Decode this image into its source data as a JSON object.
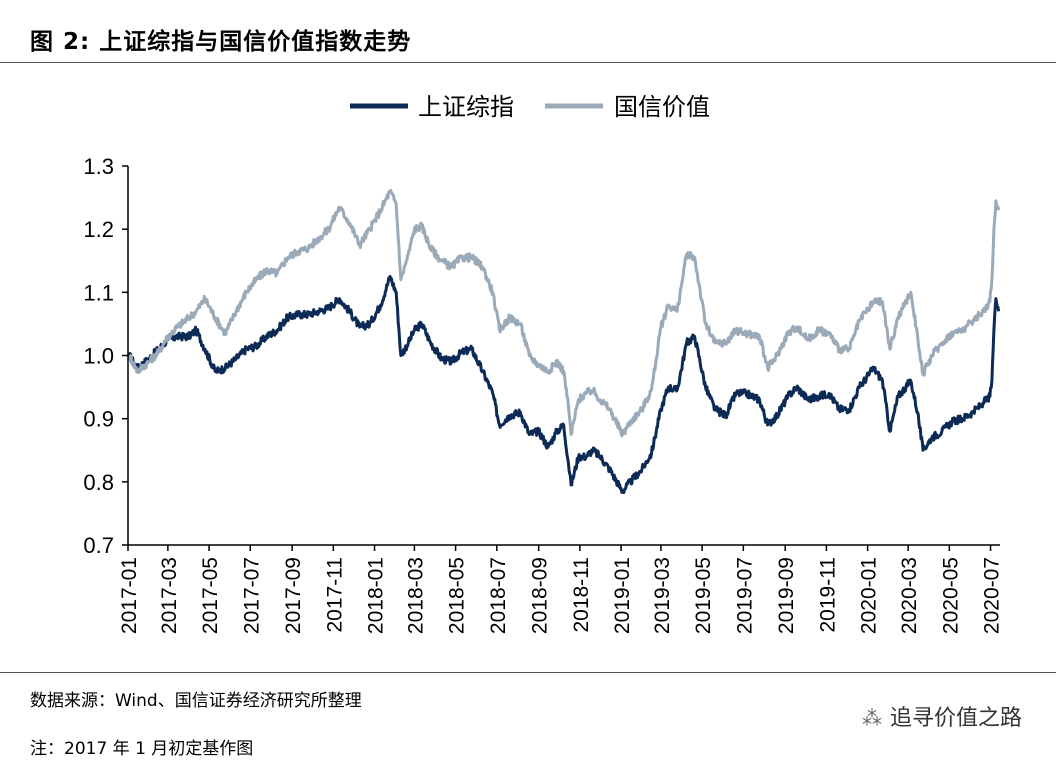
{
  "header": {
    "title": "图 2:  上证综指与国信价值指数走势"
  },
  "footer": {
    "source": "数据来源：Wind、国信证券经济研究所整理",
    "note": "注：2017 年 1 月初定基作图",
    "watermark": "追寻价值之路",
    "watermark_icon": "wechat-icon"
  },
  "colors": {
    "sse": "#0b2a55",
    "guoxin": "#9aaab9",
    "axis": "#000000"
  },
  "chart_data": {
    "type": "line",
    "title": "",
    "xlabel": "",
    "ylabel": "",
    "ylim": [
      0.7,
      1.3
    ],
    "yticks": [
      "0.7",
      "0.8",
      "0.9",
      "1.0",
      "1.1",
      "1.2",
      "1.3"
    ],
    "xticks": [
      "2017-01",
      "2017-03",
      "2017-05",
      "2017-07",
      "2017-09",
      "2017-11",
      "2018-01",
      "2018-03",
      "2018-05",
      "2018-07",
      "2018-09",
      "2018-11",
      "2019-01",
      "2019-03",
      "2019-05",
      "2019-07",
      "2019-09",
      "2019-11",
      "2020-01",
      "2020-03",
      "2020-05",
      "2020-07"
    ],
    "grid": false,
    "legend": "top-center",
    "series": [
      {
        "name": "上证综指",
        "color": "#0b2a55",
        "points": [
          [
            "2017-01-03",
            1.0
          ],
          [
            "2017-01-15",
            0.98
          ],
          [
            "2017-02-01",
            0.995
          ],
          [
            "2017-02-15",
            1.01
          ],
          [
            "2017-03-01",
            1.025
          ],
          [
            "2017-03-15",
            1.03
          ],
          [
            "2017-04-01",
            1.03
          ],
          [
            "2017-04-12",
            1.04
          ],
          [
            "2017-04-25",
            1.01
          ],
          [
            "2017-05-10",
            0.975
          ],
          [
            "2017-05-25",
            0.98
          ],
          [
            "2017-06-10",
            0.995
          ],
          [
            "2017-06-25",
            1.01
          ],
          [
            "2017-07-10",
            1.015
          ],
          [
            "2017-07-25",
            1.03
          ],
          [
            "2017-08-10",
            1.04
          ],
          [
            "2017-08-25",
            1.06
          ],
          [
            "2017-09-10",
            1.065
          ],
          [
            "2017-09-25",
            1.065
          ],
          [
            "2017-10-10",
            1.07
          ],
          [
            "2017-10-25",
            1.075
          ],
          [
            "2017-11-10",
            1.09
          ],
          [
            "2017-11-25",
            1.07
          ],
          [
            "2017-12-10",
            1.045
          ],
          [
            "2017-12-25",
            1.05
          ],
          [
            "2018-01-10",
            1.08
          ],
          [
            "2018-01-24",
            1.125
          ],
          [
            "2018-02-02",
            1.1
          ],
          [
            "2018-02-09",
            1.0
          ],
          [
            "2018-02-20",
            1.02
          ],
          [
            "2018-03-01",
            1.04
          ],
          [
            "2018-03-12",
            1.05
          ],
          [
            "2018-03-25",
            1.02
          ],
          [
            "2018-04-10",
            0.995
          ],
          [
            "2018-04-25",
            0.99
          ],
          [
            "2018-05-10",
            1.005
          ],
          [
            "2018-05-25",
            1.01
          ],
          [
            "2018-06-10",
            0.975
          ],
          [
            "2018-06-25",
            0.94
          ],
          [
            "2018-07-05",
            0.89
          ],
          [
            "2018-07-20",
            0.905
          ],
          [
            "2018-08-05",
            0.91
          ],
          [
            "2018-08-18",
            0.875
          ],
          [
            "2018-09-01",
            0.88
          ],
          [
            "2018-09-15",
            0.855
          ],
          [
            "2018-09-28",
            0.88
          ],
          [
            "2018-10-08",
            0.89
          ],
          [
            "2018-10-15",
            0.83
          ],
          [
            "2018-10-19",
            0.795
          ],
          [
            "2018-10-30",
            0.84
          ],
          [
            "2018-11-10",
            0.84
          ],
          [
            "2018-11-20",
            0.85
          ],
          [
            "2018-12-01",
            0.84
          ],
          [
            "2018-12-15",
            0.82
          ],
          [
            "2019-01-03",
            0.785
          ],
          [
            "2019-01-15",
            0.8
          ],
          [
            "2019-02-01",
            0.82
          ],
          [
            "2019-02-15",
            0.845
          ],
          [
            "2019-03-01",
            0.915
          ],
          [
            "2019-03-12",
            0.95
          ],
          [
            "2019-03-25",
            0.945
          ],
          [
            "2019-04-08",
            1.02
          ],
          [
            "2019-04-20",
            1.03
          ],
          [
            "2019-05-06",
            0.95
          ],
          [
            "2019-05-20",
            0.915
          ],
          [
            "2019-06-05",
            0.905
          ],
          [
            "2019-06-20",
            0.94
          ],
          [
            "2019-07-05",
            0.94
          ],
          [
            "2019-07-25",
            0.93
          ],
          [
            "2019-08-06",
            0.89
          ],
          [
            "2019-08-20",
            0.905
          ],
          [
            "2019-09-05",
            0.935
          ],
          [
            "2019-09-18",
            0.95
          ],
          [
            "2019-10-05",
            0.93
          ],
          [
            "2019-10-20",
            0.935
          ],
          [
            "2019-11-05",
            0.94
          ],
          [
            "2019-11-20",
            0.915
          ],
          [
            "2019-12-05",
            0.915
          ],
          [
            "2019-12-20",
            0.95
          ],
          [
            "2020-01-10",
            0.98
          ],
          [
            "2020-01-23",
            0.96
          ],
          [
            "2020-02-03",
            0.88
          ],
          [
            "2020-02-15",
            0.935
          ],
          [
            "2020-03-05",
            0.96
          ],
          [
            "2020-03-15",
            0.91
          ],
          [
            "2020-03-23",
            0.85
          ],
          [
            "2020-04-05",
            0.87
          ],
          [
            "2020-04-20",
            0.88
          ],
          [
            "2020-05-05",
            0.895
          ],
          [
            "2020-05-20",
            0.9
          ],
          [
            "2020-06-05",
            0.91
          ],
          [
            "2020-06-20",
            0.925
          ],
          [
            "2020-06-30",
            0.935
          ],
          [
            "2020-07-03",
            0.96
          ],
          [
            "2020-07-06",
            1.04
          ],
          [
            "2020-07-09",
            1.09
          ],
          [
            "2020-07-13",
            1.07
          ]
        ]
      },
      {
        "name": "国信价值",
        "color": "#9aaab9",
        "points": [
          [
            "2017-01-03",
            1.0
          ],
          [
            "2017-01-15",
            0.975
          ],
          [
            "2017-02-01",
            0.99
          ],
          [
            "2017-02-15",
            1.005
          ],
          [
            "2017-03-01",
            1.03
          ],
          [
            "2017-03-15",
            1.045
          ],
          [
            "2017-04-01",
            1.06
          ],
          [
            "2017-04-12",
            1.07
          ],
          [
            "2017-04-25",
            1.09
          ],
          [
            "2017-05-10",
            1.06
          ],
          [
            "2017-05-25",
            1.035
          ],
          [
            "2017-06-10",
            1.07
          ],
          [
            "2017-06-25",
            1.1
          ],
          [
            "2017-07-10",
            1.12
          ],
          [
            "2017-07-25",
            1.135
          ],
          [
            "2017-08-10",
            1.13
          ],
          [
            "2017-08-25",
            1.155
          ],
          [
            "2017-09-10",
            1.165
          ],
          [
            "2017-09-25",
            1.17
          ],
          [
            "2017-10-10",
            1.185
          ],
          [
            "2017-10-25",
            1.2
          ],
          [
            "2017-11-10",
            1.235
          ],
          [
            "2017-11-25",
            1.21
          ],
          [
            "2017-12-10",
            1.175
          ],
          [
            "2017-12-25",
            1.2
          ],
          [
            "2018-01-10",
            1.23
          ],
          [
            "2018-01-24",
            1.26
          ],
          [
            "2018-02-02",
            1.24
          ],
          [
            "2018-02-09",
            1.12
          ],
          [
            "2018-02-20",
            1.16
          ],
          [
            "2018-03-01",
            1.2
          ],
          [
            "2018-03-12",
            1.205
          ],
          [
            "2018-03-25",
            1.17
          ],
          [
            "2018-04-10",
            1.15
          ],
          [
            "2018-04-25",
            1.14
          ],
          [
            "2018-05-10",
            1.155
          ],
          [
            "2018-05-25",
            1.155
          ],
          [
            "2018-06-10",
            1.14
          ],
          [
            "2018-06-25",
            1.1
          ],
          [
            "2018-07-05",
            1.04
          ],
          [
            "2018-07-20",
            1.06
          ],
          [
            "2018-08-05",
            1.05
          ],
          [
            "2018-08-18",
            1.0
          ],
          [
            "2018-09-01",
            0.985
          ],
          [
            "2018-09-15",
            0.975
          ],
          [
            "2018-09-28",
            0.99
          ],
          [
            "2018-10-08",
            0.975
          ],
          [
            "2018-10-15",
            0.92
          ],
          [
            "2018-10-19",
            0.875
          ],
          [
            "2018-10-30",
            0.93
          ],
          [
            "2018-11-10",
            0.94
          ],
          [
            "2018-11-20",
            0.945
          ],
          [
            "2018-12-01",
            0.93
          ],
          [
            "2018-12-15",
            0.915
          ],
          [
            "2019-01-03",
            0.875
          ],
          [
            "2019-01-15",
            0.895
          ],
          [
            "2019-02-01",
            0.915
          ],
          [
            "2019-02-15",
            0.945
          ],
          [
            "2019-03-01",
            1.045
          ],
          [
            "2019-03-12",
            1.08
          ],
          [
            "2019-03-25",
            1.07
          ],
          [
            "2019-04-08",
            1.16
          ],
          [
            "2019-04-20",
            1.155
          ],
          [
            "2019-05-06",
            1.05
          ],
          [
            "2019-05-20",
            1.02
          ],
          [
            "2019-06-05",
            1.02
          ],
          [
            "2019-06-20",
            1.04
          ],
          [
            "2019-07-05",
            1.035
          ],
          [
            "2019-07-25",
            1.03
          ],
          [
            "2019-08-06",
            0.98
          ],
          [
            "2019-08-20",
            1.0
          ],
          [
            "2019-09-05",
            1.035
          ],
          [
            "2019-09-18",
            1.045
          ],
          [
            "2019-10-05",
            1.025
          ],
          [
            "2019-10-20",
            1.04
          ],
          [
            "2019-11-05",
            1.035
          ],
          [
            "2019-11-20",
            1.01
          ],
          [
            "2019-12-05",
            1.01
          ],
          [
            "2019-12-20",
            1.055
          ],
          [
            "2020-01-10",
            1.085
          ],
          [
            "2020-01-23",
            1.085
          ],
          [
            "2020-02-03",
            1.01
          ],
          [
            "2020-02-15",
            1.06
          ],
          [
            "2020-03-05",
            1.1
          ],
          [
            "2020-03-15",
            1.03
          ],
          [
            "2020-03-23",
            0.97
          ],
          [
            "2020-04-05",
            1.0
          ],
          [
            "2020-04-20",
            1.02
          ],
          [
            "2020-05-05",
            1.035
          ],
          [
            "2020-05-20",
            1.04
          ],
          [
            "2020-06-05",
            1.055
          ],
          [
            "2020-06-20",
            1.07
          ],
          [
            "2020-06-30",
            1.085
          ],
          [
            "2020-07-03",
            1.12
          ],
          [
            "2020-07-06",
            1.2
          ],
          [
            "2020-07-09",
            1.245
          ],
          [
            "2020-07-13",
            1.23
          ]
        ]
      }
    ]
  }
}
